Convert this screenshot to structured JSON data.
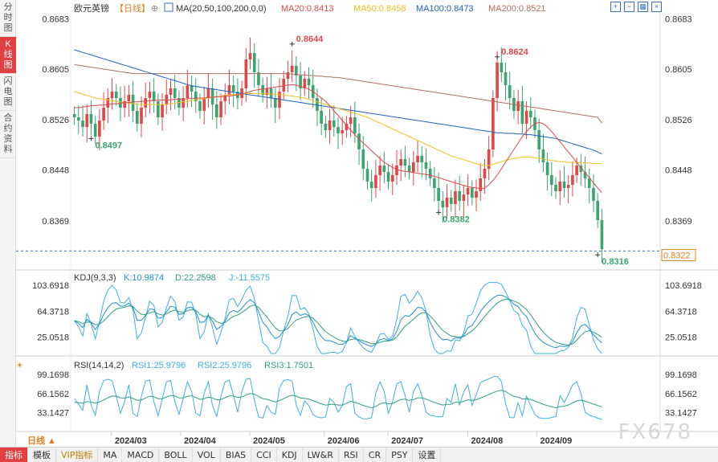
{
  "header": {
    "instrument": "欧元英镑",
    "period_label": "【日线】",
    "ma_params": "MA(20,50,100,200,0,0)",
    "ma20": "MA20:0.8413",
    "ma50": "MA50:0.8458",
    "ma100": "MA100:0.8473",
    "ma200": "MA200:0.8521"
  },
  "left_tabs": [
    "分时图",
    "K线图",
    "闪电图",
    "合约资料"
  ],
  "left_tab_active": 1,
  "price_axis": {
    "ticks": [
      "0.8683",
      "0.8605",
      "0.8526",
      "0.8448",
      "0.8369"
    ],
    "current_price": "0.8322"
  },
  "annotations": {
    "high1": "0.8644",
    "high2": "0.8624",
    "low1": "0.8497",
    "low2": "0.8382",
    "low3": "0.8316"
  },
  "kdj": {
    "title": "KDJ(9,3,3)",
    "k": "K:10.9874",
    "d": "D:22.2598",
    "j": "J:-11.5575",
    "ticks": [
      "103.6918",
      "64.3718",
      "25.0518"
    ]
  },
  "rsi": {
    "title": "RSI(14,14,2)",
    "rsi1": "RSI1:25.9796",
    "rsi2": "RSI2:25.9796",
    "rsi3": "RSI3:1.7501",
    "ticks": [
      "99.1698",
      "66.1562",
      "33.1427"
    ]
  },
  "time_axis": {
    "period_button": "日线 ▲",
    "labels": [
      "2024/03",
      "2024/04",
      "2024/05",
      "2024/06",
      "2024/07",
      "2024/08",
      "2024/09"
    ]
  },
  "bottom_tabs": [
    "指标",
    "模板",
    "VIP指标",
    "MA",
    "MACD",
    "BOLL",
    "VOL",
    "BIAS",
    "CCI",
    "KDJ",
    "LW&R",
    "RSI",
    "CR",
    "PSY",
    "设置"
  ],
  "watermark": "FX678",
  "colors": {
    "up": "#e04848",
    "down": "#3aa56e",
    "ma20": "#e04848",
    "ma50": "#f0c020",
    "ma100": "#2060c0",
    "ma200": "#b07060",
    "kdj_k": "#2090d0",
    "kdj_d": "#30a080",
    "kdj_j": "#40b0e0",
    "rsi1": "#40b0e0",
    "rsi3": "#30a080"
  },
  "chart_data": {
    "type": "candlestick",
    "price_ylim": [
      0.83,
      0.869
    ],
    "kdj_ylim": [
      0,
      110
    ],
    "rsi_ylim": [
      10,
      105
    ],
    "closes": [
      0.853,
      0.8525,
      0.8515,
      0.8535,
      0.852,
      0.85,
      0.8525,
      0.8545,
      0.856,
      0.857,
      0.856,
      0.8545,
      0.8555,
      0.8565,
      0.854,
      0.852,
      0.8545,
      0.856,
      0.857,
      0.8555,
      0.853,
      0.855,
      0.8565,
      0.8575,
      0.856,
      0.8545,
      0.856,
      0.858,
      0.857,
      0.8555,
      0.854,
      0.856,
      0.8575,
      0.855,
      0.853,
      0.8555,
      0.8565,
      0.858,
      0.857,
      0.856,
      0.8575,
      0.862,
      0.863,
      0.86,
      0.858,
      0.8565,
      0.8575,
      0.856,
      0.8545,
      0.857,
      0.859,
      0.86,
      0.861,
      0.8595,
      0.8575,
      0.859,
      0.858,
      0.856,
      0.854,
      0.852,
      0.851,
      0.8525,
      0.8515,
      0.8505,
      0.851,
      0.852,
      0.853,
      0.8505,
      0.848,
      0.845,
      0.843,
      0.842,
      0.844,
      0.8455,
      0.8445,
      0.843,
      0.844,
      0.8455,
      0.8465,
      0.8455,
      0.8445,
      0.846,
      0.847,
      0.846,
      0.845,
      0.8435,
      0.842,
      0.84,
      0.839,
      0.8405,
      0.8395,
      0.8415,
      0.84,
      0.841,
      0.842,
      0.8405,
      0.8415,
      0.8435,
      0.845,
      0.848,
      0.856,
      0.8615,
      0.86,
      0.858,
      0.856,
      0.854,
      0.8555,
      0.852,
      0.854,
      0.853,
      0.851,
      0.848,
      0.846,
      0.844,
      0.8425,
      0.8415,
      0.843,
      0.842,
      0.8425,
      0.844,
      0.8455,
      0.8445,
      0.8435,
      0.842,
      0.84,
      0.837,
      0.8325
    ],
    "ma20": [
      0.8545,
      0.8545,
      0.8546,
      0.8547,
      0.8548,
      0.8548,
      0.8549,
      0.8549,
      0.855,
      0.8551,
      0.8551,
      0.8552,
      0.8553,
      0.8553,
      0.8554,
      0.8554,
      0.8555,
      0.8555,
      0.8556,
      0.8556,
      0.8557,
      0.8557,
      0.8557,
      0.8557,
      0.8558,
      0.8558,
      0.8558,
      0.8559,
      0.8559,
      0.856,
      0.856,
      0.856,
      0.8561,
      0.8561,
      0.8562,
      0.8562,
      0.8563,
      0.8563,
      0.8564,
      0.8565,
      0.8566,
      0.8568,
      0.857,
      0.8572,
      0.8573,
      0.8574,
      0.8575,
      0.8576,
      0.8577,
      0.8578,
      0.8579,
      0.858,
      0.8581,
      0.858,
      0.8578,
      0.8576,
      0.8574,
      0.857,
      0.8565,
      0.856,
      0.8555,
      0.8548,
      0.854,
      0.8533,
      0.8525,
      0.8518,
      0.851,
      0.8503,
      0.8496,
      0.849,
      0.8484,
      0.8478,
      0.8472,
      0.8466,
      0.846,
      0.8456,
      0.8452,
      0.8449,
      0.8447,
      0.8446,
      0.8445,
      0.8444,
      0.8443,
      0.8442,
      0.8441,
      0.844,
      0.8438,
      0.8436,
      0.8434,
      0.8432,
      0.843,
      0.8428,
      0.8426,
      0.8424,
      0.8422,
      0.8421,
      0.842,
      0.8419,
      0.842,
      0.8425,
      0.8432,
      0.844,
      0.845,
      0.846,
      0.847,
      0.848,
      0.849,
      0.85,
      0.8508,
      0.8515,
      0.852,
      0.8522,
      0.852,
      0.8515,
      0.8508,
      0.85,
      0.8492,
      0.8484,
      0.8476,
      0.8468,
      0.846,
      0.8452,
      0.8444,
      0.8436,
      0.8428,
      0.842,
      0.8413
    ],
    "ma50": [
      0.857,
      0.8568,
      0.8566,
      0.8564,
      0.8562,
      0.856,
      0.8559,
      0.8558,
      0.8557,
      0.8556,
      0.8555,
      0.8554,
      0.8553,
      0.8552,
      0.8551,
      0.855,
      0.855,
      0.855,
      0.855,
      0.855,
      0.855,
      0.855,
      0.855,
      0.8551,
      0.8552,
      0.8553,
      0.8554,
      0.8555,
      0.8556,
      0.8557,
      0.8558,
      0.8559,
      0.856,
      0.8561,
      0.8562,
      0.8563,
      0.8564,
      0.8565,
      0.8565,
      0.8566,
      0.8566,
      0.8567,
      0.8567,
      0.8567,
      0.8567,
      0.8567,
      0.8567,
      0.8566,
      0.8566,
      0.8565,
      0.8565,
      0.8564,
      0.8563,
      0.8562,
      0.8561,
      0.856,
      0.8558,
      0.8556,
      0.8554,
      0.8552,
      0.855,
      0.8548,
      0.8546,
      0.8544,
      0.8542,
      0.854,
      0.8538,
      0.8536,
      0.8534,
      0.8532,
      0.853,
      0.8527,
      0.8524,
      0.8521,
      0.8518,
      0.8515,
      0.8512,
      0.8509,
      0.8506,
      0.8503,
      0.85,
      0.8497,
      0.8494,
      0.8491,
      0.8488,
      0.8485,
      0.8482,
      0.8479,
      0.8476,
      0.8473,
      0.847,
      0.8468,
      0.8466,
      0.8464,
      0.8462,
      0.846,
      0.8458,
      0.8456,
      0.8455,
      0.8455,
      0.8457,
      0.8459,
      0.8461,
      0.8463,
      0.8465,
      0.8466,
      0.8467,
      0.8468,
      0.8468,
      0.8468,
      0.8467,
      0.8466,
      0.8465,
      0.8464,
      0.8463,
      0.8462,
      0.8461,
      0.8461,
      0.846,
      0.846,
      0.846,
      0.8459,
      0.8459,
      0.8459,
      0.8458,
      0.8458,
      0.8458
    ],
    "ma100": [
      0.8635,
      0.8633,
      0.8631,
      0.8629,
      0.8627,
      0.8625,
      0.8623,
      0.8621,
      0.8619,
      0.8617,
      0.8615,
      0.8613,
      0.8611,
      0.8609,
      0.8607,
      0.8605,
      0.8603,
      0.8601,
      0.8599,
      0.8597,
      0.8595,
      0.8593,
      0.8591,
      0.8589,
      0.8587,
      0.8585,
      0.8583,
      0.8581,
      0.8579,
      0.8578,
      0.8577,
      0.8576,
      0.8575,
      0.8574,
      0.8573,
      0.8572,
      0.8571,
      0.857,
      0.8569,
      0.8568,
      0.8567,
      0.8566,
      0.8565,
      0.8564,
      0.8563,
      0.8562,
      0.8561,
      0.856,
      0.8559,
      0.8558,
      0.8557,
      0.8556,
      0.8555,
      0.8554,
      0.8553,
      0.8552,
      0.8551,
      0.855,
      0.8549,
      0.8548,
      0.8547,
      0.8546,
      0.8545,
      0.8544,
      0.8543,
      0.8542,
      0.8541,
      0.854,
      0.8539,
      0.8538,
      0.8537,
      0.8536,
      0.8535,
      0.8534,
      0.8533,
      0.8532,
      0.8531,
      0.853,
      0.8529,
      0.8528,
      0.8527,
      0.8526,
      0.8525,
      0.8524,
      0.8523,
      0.8522,
      0.8521,
      0.852,
      0.8519,
      0.8518,
      0.8517,
      0.8516,
      0.8515,
      0.8514,
      0.8513,
      0.8512,
      0.8511,
      0.851,
      0.8509,
      0.8508,
      0.8507,
      0.8506,
      0.8506,
      0.8505,
      0.8505,
      0.8505,
      0.8504,
      0.8504,
      0.8503,
      0.8503,
      0.8502,
      0.8501,
      0.85,
      0.8499,
      0.8498,
      0.8497,
      0.8495,
      0.8493,
      0.8491,
      0.8489,
      0.8487,
      0.8485,
      0.8483,
      0.8481,
      0.8479,
      0.8476,
      0.8473
    ],
    "ma200": [
      0.8612,
      0.8611,
      0.861,
      0.8609,
      0.8608,
      0.8607,
      0.8606,
      0.8605,
      0.8604,
      0.8603,
      0.8602,
      0.8601,
      0.86,
      0.8599,
      0.8598,
      0.8598,
      0.8598,
      0.8598,
      0.8598,
      0.8598,
      0.8598,
      0.8598,
      0.8598,
      0.8598,
      0.8598,
      0.8598,
      0.8598,
      0.8598,
      0.8598,
      0.8598,
      0.8598,
      0.8598,
      0.8598,
      0.8598,
      0.8598,
      0.8598,
      0.8598,
      0.8598,
      0.8598,
      0.8598,
      0.8598,
      0.8598,
      0.8598,
      0.8598,
      0.8598,
      0.8598,
      0.8598,
      0.8598,
      0.8598,
      0.8598,
      0.8598,
      0.8598,
      0.8597,
      0.8597,
      0.8596,
      0.8596,
      0.8595,
      0.8595,
      0.8594,
      0.8594,
      0.8593,
      0.8593,
      0.8592,
      0.8592,
      0.8591,
      0.859,
      0.8589,
      0.8588,
      0.8587,
      0.8586,
      0.8585,
      0.8584,
      0.8583,
      0.8582,
      0.8581,
      0.858,
      0.8579,
      0.8578,
      0.8577,
      0.8576,
      0.8575,
      0.8574,
      0.8573,
      0.8572,
      0.8571,
      0.857,
      0.8569,
      0.8568,
      0.8567,
      0.8566,
      0.8565,
      0.8564,
      0.8563,
      0.8562,
      0.8561,
      0.856,
      0.8559,
      0.8558,
      0.8557,
      0.8556,
      0.8555,
      0.8554,
      0.8553,
      0.8552,
      0.8551,
      0.855,
      0.8549,
      0.8548,
      0.8547,
      0.8546,
      0.8545,
      0.8544,
      0.8543,
      0.8542,
      0.8541,
      0.854,
      0.8539,
      0.8538,
      0.8537,
      0.8536,
      0.8535,
      0.8534,
      0.8533,
      0.8532,
      0.8531,
      0.853,
      0.8521
    ]
  }
}
